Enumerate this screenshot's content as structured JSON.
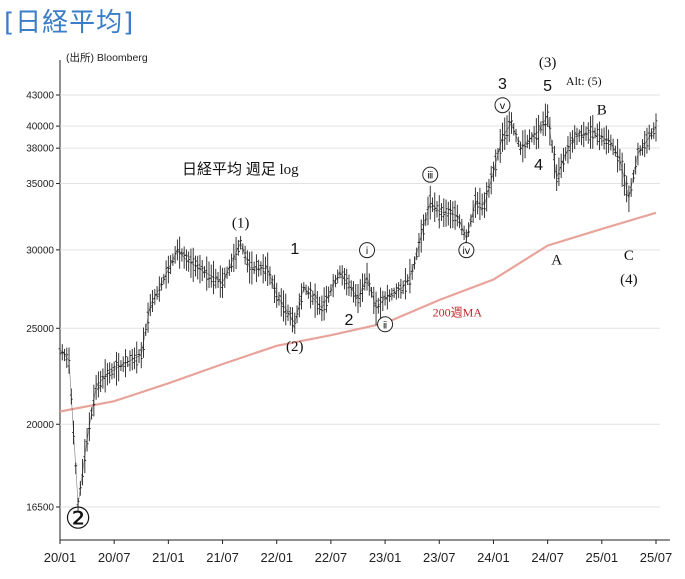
{
  "page_title": "[日経平均]",
  "source": "(出所) Bloomberg",
  "chart_data": {
    "type": "line",
    "title": "日経平均 週足 log",
    "y_scale": "log",
    "ylim": [
      16000,
      45000
    ],
    "yticks": [
      {
        "label": "43000",
        "value": 43000
      },
      {
        "label": "40000",
        "value": 40000
      },
      {
        "label": "38000",
        "value": 38000
      },
      {
        "label": "35000",
        "value": 35000
      },
      {
        "label": "30000",
        "value": 30000
      },
      {
        "label": "25000",
        "value": 25000
      },
      {
        "label": "20000",
        "value": 20000
      },
      {
        "label": "16500",
        "value": 16500
      }
    ],
    "xlim": [
      "2020-01",
      "2025-08"
    ],
    "xticks": [
      "20/01",
      "20/07",
      "21/01",
      "21/07",
      "22/01",
      "22/07",
      "23/01",
      "23/07",
      "24/01",
      "24/07",
      "25/01",
      "25/07"
    ],
    "series": [
      {
        "color": "#222222",
        "points": [
          [
            "2020-01",
            23800
          ],
          [
            "2020-02",
            23200
          ],
          [
            "2020-03",
            16600
          ],
          [
            "2020-04",
            19300
          ],
          [
            "2020-05",
            21800
          ],
          [
            "2020-06",
            22400
          ],
          [
            "2020-08",
            23000
          ],
          [
            "2020-10",
            23500
          ],
          [
            "2020-11",
            26400
          ],
          [
            "2020-12",
            27400
          ],
          [
            "2021-02",
            30000
          ],
          [
            "2021-03",
            29300
          ],
          [
            "2021-05",
            28500
          ],
          [
            "2021-07",
            27800
          ],
          [
            "2021-09",
            30500
          ],
          [
            "2021-10",
            28800
          ],
          [
            "2021-12",
            28700
          ],
          [
            "2022-01",
            27000
          ],
          [
            "2022-03",
            25300
          ],
          [
            "2022-04",
            27500
          ],
          [
            "2022-06",
            26200
          ],
          [
            "2022-08",
            28500
          ],
          [
            "2022-10",
            26800
          ],
          [
            "2022-11",
            28200
          ],
          [
            "2022-12",
            26200
          ],
          [
            "2023-01",
            26800
          ],
          [
            "2023-03",
            27500
          ],
          [
            "2023-04",
            28500
          ],
          [
            "2023-05",
            31000
          ],
          [
            "2023-06",
            33500
          ],
          [
            "2023-07",
            32800
          ],
          [
            "2023-09",
            32500
          ],
          [
            "2023-10",
            30800
          ],
          [
            "2023-11",
            33500
          ],
          [
            "2023-12",
            33300
          ],
          [
            "2024-01",
            36000
          ],
          [
            "2024-02",
            39000
          ],
          [
            "2024-03",
            40300
          ],
          [
            "2024-04",
            38000
          ],
          [
            "2024-05",
            38800
          ],
          [
            "2024-06",
            39500
          ],
          [
            "2024-07",
            41000
          ],
          [
            "2024-08",
            35500
          ],
          [
            "2024-09",
            37500
          ],
          [
            "2024-10",
            39000
          ],
          [
            "2024-12",
            39500
          ],
          [
            "2025-01",
            39000
          ],
          [
            "2025-02",
            38500
          ],
          [
            "2025-03",
            37000
          ],
          [
            "2025-04",
            33800
          ],
          [
            "2025-05",
            37500
          ],
          [
            "2025-07",
            39900
          ]
        ]
      },
      {
        "name": "200週MA",
        "color": "#e8a39a",
        "points": [
          [
            "2020-01",
            20600
          ],
          [
            "2020-07",
            21100
          ],
          [
            "2021-01",
            22000
          ],
          [
            "2021-07",
            23000
          ],
          [
            "2022-01",
            24000
          ],
          [
            "2022-07",
            24600
          ],
          [
            "2023-01",
            25300
          ],
          [
            "2023-07",
            26700
          ],
          [
            "2024-01",
            28000
          ],
          [
            "2024-07",
            30300
          ],
          [
            "2025-01",
            31500
          ],
          [
            "2025-07",
            32700
          ]
        ]
      }
    ],
    "annotations": [
      {
        "text": "②",
        "x": "2020-03",
        "y": 15700,
        "style": "big"
      },
      {
        "text": "(1)",
        "x": "2021-09",
        "y": 31600,
        "style": "paren"
      },
      {
        "text": "1",
        "x": "2022-03",
        "y": 29700,
        "style": "num"
      },
      {
        "text": "(2)",
        "x": "2022-03",
        "y": 23700,
        "style": "paren"
      },
      {
        "text": "2",
        "x": "2022-09",
        "y": 25200,
        "style": "num"
      },
      {
        "text": "ⅰ",
        "x": "2022-11",
        "y": 29700,
        "style": "circle"
      },
      {
        "text": "ⅱ",
        "x": "2023-01",
        "y": 25000,
        "style": "circle"
      },
      {
        "text": "ⅲ",
        "x": "2023-06",
        "y": 35400,
        "style": "circle"
      },
      {
        "text": "ⅳ",
        "x": "2023-10",
        "y": 29700,
        "style": "circle"
      },
      {
        "text": "ⅴ",
        "x": "2024-02",
        "y": 41600,
        "style": "circle"
      },
      {
        "text": "3",
        "x": "2024-02",
        "y": 43600,
        "style": "num"
      },
      {
        "text": "(3)",
        "x": "2024-07",
        "y": 45900,
        "style": "paren"
      },
      {
        "text": "5",
        "x": "2024-07",
        "y": 43400,
        "style": "num"
      },
      {
        "text": "Alt: (5)",
        "x": "2024-11",
        "y": 44000,
        "style": "alt"
      },
      {
        "text": "4",
        "x": "2024-06",
        "y": 36100,
        "style": "num"
      },
      {
        "text": "A",
        "x": "2024-08",
        "y": 29000,
        "style": "paren"
      },
      {
        "text": "B",
        "x": "2025-01",
        "y": 41100,
        "style": "paren"
      },
      {
        "text": "C",
        "x": "2025-04",
        "y": 29300,
        "style": "paren"
      },
      {
        "text": "(4)",
        "x": "2025-04",
        "y": 27700,
        "style": "paren"
      },
      {
        "text": "200週MA",
        "x": "2023-09",
        "y": 25700,
        "style": "ma"
      }
    ]
  }
}
